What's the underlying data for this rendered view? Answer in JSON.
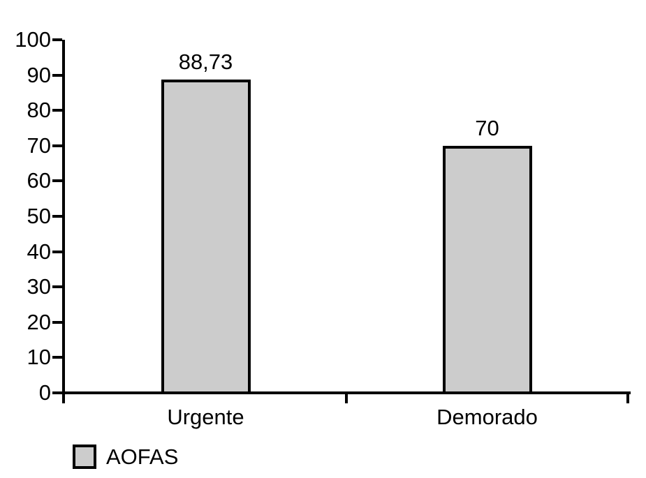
{
  "chart_data": {
    "type": "bar",
    "title": "",
    "xlabel": "",
    "ylabel": "",
    "categories": [
      "Urgente",
      "Demorado"
    ],
    "series": [
      {
        "name": "AOFAS",
        "values": [
          88.73,
          70
        ],
        "value_labels": [
          "88,73",
          "70"
        ]
      }
    ],
    "ylim": [
      0,
      100
    ],
    "yticks": [
      0,
      10,
      20,
      30,
      40,
      50,
      60,
      70,
      80,
      90,
      100
    ],
    "ytick_labels": [
      "0",
      "10",
      "20",
      "30",
      "40",
      "50",
      "60",
      "70",
      "80",
      "90",
      "100"
    ],
    "grid": false,
    "legend": {
      "position": "bottom-left",
      "label": "AOFAS"
    },
    "colors": {
      "bar_fill": "#cccccc",
      "bar_border": "#000000",
      "axis": "#000000",
      "text": "#000000",
      "background": "#ffffff"
    }
  }
}
